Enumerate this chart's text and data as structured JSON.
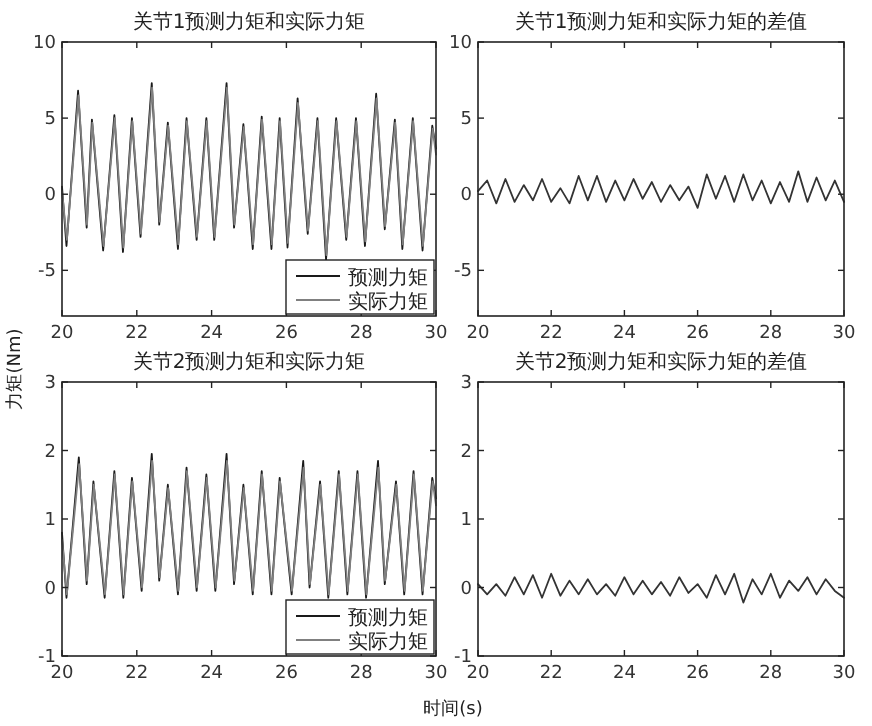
{
  "chart_data": [
    {
      "type": "line",
      "title": "关节1预测力矩和实际力矩",
      "xlim": [
        20,
        30
      ],
      "ylim": [
        -8,
        10
      ],
      "xticks": [
        20,
        22,
        24,
        26,
        28,
        30
      ],
      "yticks": [
        -5,
        0,
        5,
        10
      ],
      "legend": "bottom right",
      "series": [
        {
          "name": "预测力矩",
          "color": "#1a1a1a",
          "x": [
            20,
            20.12,
            20.43,
            20.66,
            20.8,
            21.1,
            21.4,
            21.63,
            21.87,
            22.1,
            22.4,
            22.6,
            22.83,
            23.1,
            23.33,
            23.6,
            23.86,
            24.07,
            24.4,
            24.6,
            24.85,
            25.1,
            25.34,
            25.6,
            25.82,
            26.03,
            26.3,
            26.57,
            26.83,
            27.06,
            27.33,
            27.6,
            27.86,
            28.1,
            28.4,
            28.63,
            28.9,
            29.1,
            29.38,
            29.64,
            29.9,
            30
          ],
          "values": [
            0.5,
            -3.4,
            6.8,
            -2.2,
            4.9,
            -3.7,
            5.2,
            -3.8,
            5.0,
            -2.8,
            7.3,
            -2.0,
            4.7,
            -3.6,
            5.0,
            -3.0,
            5.0,
            -3.0,
            7.3,
            -2.2,
            4.6,
            -3.6,
            5.1,
            -3.6,
            5.0,
            -3.5,
            6.3,
            -2.6,
            5.0,
            -4.3,
            5.0,
            -3.0,
            5.0,
            -3.4,
            6.6,
            -2.3,
            4.9,
            -3.6,
            5.0,
            -3.7,
            4.5,
            3.0
          ]
        },
        {
          "name": "实际力矩",
          "color": "#808080",
          "x": [
            20,
            20.13,
            20.44,
            20.67,
            20.81,
            21.11,
            21.41,
            21.64,
            21.88,
            22.11,
            22.41,
            22.61,
            22.84,
            23.11,
            23.34,
            23.61,
            23.87,
            24.08,
            24.41,
            24.61,
            24.86,
            25.11,
            25.35,
            25.61,
            25.83,
            26.04,
            26.31,
            26.58,
            26.84,
            27.07,
            27.34,
            27.61,
            27.87,
            28.11,
            28.41,
            28.64,
            28.91,
            29.11,
            29.39,
            29.65,
            29.91,
            30
          ],
          "values": [
            0.2,
            -3.0,
            6.5,
            -2.0,
            4.7,
            -3.4,
            5.0,
            -3.5,
            4.8,
            -2.6,
            7.0,
            -1.8,
            4.5,
            -3.3,
            4.8,
            -2.8,
            4.8,
            -2.8,
            7.0,
            -2.0,
            4.4,
            -3.3,
            4.9,
            -3.3,
            4.8,
            -3.2,
            6.0,
            -2.4,
            4.8,
            -4.0,
            4.8,
            -2.8,
            4.8,
            -3.1,
            6.3,
            -2.1,
            4.7,
            -3.3,
            4.8,
            -3.4,
            4.3,
            2.6
          ]
        }
      ]
    },
    {
      "type": "line",
      "title": "关节1预测力矩和实际力矩的差值",
      "xlim": [
        20,
        30
      ],
      "ylim": [
        -8,
        10
      ],
      "xticks": [
        20,
        22,
        24,
        26,
        28,
        30
      ],
      "yticks": [
        -5,
        0,
        5,
        10
      ],
      "series": [
        {
          "color": "#333333",
          "x": [
            20,
            20.25,
            20.5,
            20.75,
            21,
            21.25,
            21.5,
            21.75,
            22,
            22.25,
            22.5,
            22.75,
            23,
            23.25,
            23.5,
            23.75,
            24,
            24.25,
            24.5,
            24.75,
            25,
            25.25,
            25.5,
            25.75,
            26,
            26.25,
            26.5,
            26.75,
            27,
            27.25,
            27.5,
            27.75,
            28,
            28.25,
            28.5,
            28.75,
            29,
            29.25,
            29.5,
            29.75,
            30
          ],
          "values": [
            0.2,
            0.9,
            -0.6,
            1.0,
            -0.5,
            0.6,
            -0.4,
            1.0,
            -0.5,
            0.4,
            -0.6,
            1.2,
            -0.4,
            1.2,
            -0.5,
            0.9,
            -0.4,
            1.0,
            -0.3,
            0.8,
            -0.5,
            0.6,
            -0.4,
            0.5,
            -0.9,
            1.3,
            -0.3,
            1.2,
            -0.5,
            1.3,
            -0.4,
            0.9,
            -0.6,
            0.8,
            -0.5,
            1.5,
            -0.5,
            1.1,
            -0.4,
            0.9,
            -0.5
          ]
        }
      ]
    },
    {
      "type": "line",
      "title": "关节2预测力矩和实际力矩",
      "ylabel": "力矩(Nm)",
      "xlim": [
        20,
        30
      ],
      "ylim": [
        -1,
        3
      ],
      "xticks": [
        20,
        22,
        24,
        26,
        28,
        30
      ],
      "yticks": [
        -1,
        0,
        1,
        2,
        3
      ],
      "legend": "bottom right",
      "series": [
        {
          "name": "预测力矩",
          "color": "#1a1a1a",
          "x": [
            20,
            20.12,
            20.45,
            20.66,
            20.84,
            21.14,
            21.4,
            21.64,
            21.87,
            22.13,
            22.4,
            22.6,
            22.83,
            23.1,
            23.33,
            23.6,
            23.86,
            24.1,
            24.4,
            24.6,
            24.85,
            25.1,
            25.34,
            25.6,
            25.82,
            26.14,
            26.45,
            26.62,
            26.9,
            27.12,
            27.4,
            27.63,
            27.9,
            28.13,
            28.45,
            28.63,
            28.93,
            29.15,
            29.4,
            29.64,
            29.9,
            30
          ],
          "values": [
            0.8,
            -0.15,
            1.9,
            0.05,
            1.55,
            -0.15,
            1.7,
            -0.15,
            1.6,
            -0.05,
            1.95,
            0.1,
            1.5,
            -0.1,
            1.75,
            -0.05,
            1.65,
            -0.05,
            1.95,
            0.05,
            1.5,
            -0.1,
            1.7,
            -0.1,
            1.6,
            -0.1,
            1.85,
            0.0,
            1.55,
            -0.15,
            1.7,
            -0.1,
            1.7,
            -0.15,
            1.85,
            0.05,
            1.55,
            -0.1,
            1.7,
            -0.1,
            1.6,
            1.3
          ]
        },
        {
          "name": "实际力矩",
          "color": "#808080",
          "x": [
            20,
            20.13,
            20.46,
            20.67,
            20.85,
            21.15,
            21.41,
            21.65,
            21.88,
            22.14,
            22.41,
            22.61,
            22.84,
            23.11,
            23.34,
            23.61,
            23.87,
            24.11,
            24.41,
            24.61,
            24.86,
            25.11,
            25.35,
            25.61,
            25.83,
            26.15,
            26.46,
            26.63,
            26.91,
            27.13,
            27.41,
            27.64,
            27.91,
            28.14,
            28.46,
            28.64,
            28.94,
            29.16,
            29.41,
            29.65,
            29.91,
            30
          ],
          "values": [
            0.7,
            -0.1,
            1.8,
            0.1,
            1.5,
            -0.1,
            1.65,
            -0.1,
            1.55,
            0.0,
            1.85,
            0.15,
            1.45,
            -0.05,
            1.7,
            0.0,
            1.6,
            0.0,
            1.85,
            0.1,
            1.45,
            -0.05,
            1.65,
            -0.05,
            1.55,
            -0.05,
            1.75,
            0.05,
            1.5,
            -0.1,
            1.65,
            -0.05,
            1.65,
            -0.1,
            1.75,
            0.1,
            1.5,
            -0.05,
            1.65,
            -0.05,
            1.55,
            1.2
          ]
        }
      ]
    },
    {
      "type": "line",
      "title": "关节2预测力矩和实际力矩的差值",
      "xlabel": "时间(s)",
      "xlim": [
        20,
        30
      ],
      "ylim": [
        -1,
        3
      ],
      "xticks": [
        20,
        22,
        24,
        26,
        28,
        30
      ],
      "yticks": [
        -1,
        0,
        1,
        2,
        3
      ],
      "series": [
        {
          "color": "#333333",
          "x": [
            20,
            20.25,
            20.5,
            20.75,
            21,
            21.25,
            21.5,
            21.75,
            22,
            22.25,
            22.5,
            22.75,
            23,
            23.25,
            23.5,
            23.75,
            24,
            24.25,
            24.5,
            24.75,
            25,
            25.25,
            25.5,
            25.75,
            26,
            26.25,
            26.5,
            26.75,
            27,
            27.25,
            27.5,
            27.75,
            28,
            28.25,
            28.5,
            28.75,
            29,
            29.25,
            29.5,
            29.75,
            30
          ],
          "values": [
            0.05,
            -0.1,
            0.05,
            -0.12,
            0.15,
            -0.1,
            0.18,
            -0.15,
            0.2,
            -0.12,
            0.1,
            -0.1,
            0.12,
            -0.1,
            0.05,
            -0.12,
            0.15,
            -0.1,
            0.1,
            -0.1,
            0.08,
            -0.12,
            0.15,
            -0.08,
            0.05,
            -0.15,
            0.18,
            -0.1,
            0.2,
            -0.22,
            0.12,
            -0.1,
            0.2,
            -0.15,
            0.1,
            -0.05,
            0.15,
            -0.1,
            0.12,
            -0.05,
            -0.15
          ]
        }
      ]
    }
  ]
}
